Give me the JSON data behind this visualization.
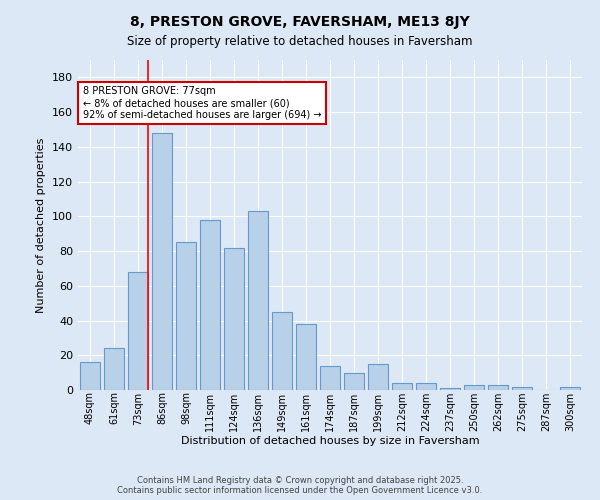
{
  "title1": "8, PRESTON GROVE, FAVERSHAM, ME13 8JY",
  "title2": "Size of property relative to detached houses in Faversham",
  "xlabel": "Distribution of detached houses by size in Faversham",
  "ylabel": "Number of detached properties",
  "categories": [
    "48sqm",
    "61sqm",
    "73sqm",
    "86sqm",
    "98sqm",
    "111sqm",
    "124sqm",
    "136sqm",
    "149sqm",
    "161sqm",
    "174sqm",
    "187sqm",
    "199sqm",
    "212sqm",
    "224sqm",
    "237sqm",
    "250sqm",
    "262sqm",
    "275sqm",
    "287sqm",
    "300sqm"
  ],
  "values": [
    16,
    24,
    68,
    148,
    85,
    98,
    82,
    103,
    45,
    38,
    14,
    10,
    15,
    4,
    4,
    1,
    3,
    3,
    2,
    0,
    2
  ],
  "bar_color": "#b8d0e8",
  "bar_edge_color": "#6699cc",
  "red_line_index": 2,
  "annotation_text": "8 PRESTON GROVE: 77sqm\n← 8% of detached houses are smaller (60)\n92% of semi-detached houses are larger (694) →",
  "annotation_box_color": "#ffffff",
  "annotation_box_edge": "#cc0000",
  "footer1": "Contains HM Land Registry data © Crown copyright and database right 2025.",
  "footer2": "Contains public sector information licensed under the Open Government Licence v3.0.",
  "background_color": "#dce8f5",
  "plot_bg_color": "#dce8f5",
  "ylim": [
    0,
    190
  ],
  "yticks": [
    0,
    20,
    40,
    60,
    80,
    100,
    120,
    140,
    160,
    180
  ]
}
